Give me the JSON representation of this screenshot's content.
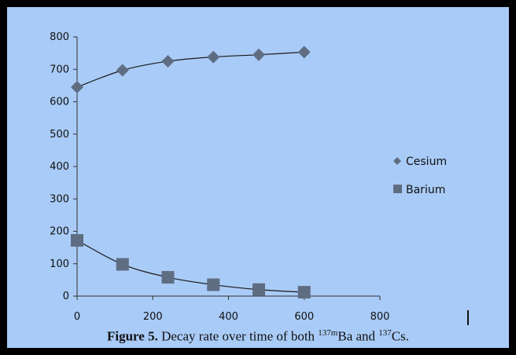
{
  "chart_data": {
    "type": "scatter",
    "title": "",
    "xlabel": "",
    "ylabel": "",
    "xlim": [
      0,
      800
    ],
    "ylim": [
      0,
      800
    ],
    "x_ticks": [
      "0",
      "200",
      "400",
      "600",
      "800"
    ],
    "y_ticks": [
      "0",
      "100",
      "200",
      "300",
      "400",
      "500",
      "600",
      "700",
      "800"
    ],
    "grid": false,
    "legend_position": "right",
    "series": [
      {
        "name": "Cesium",
        "marker": "diamond",
        "color": "#5f6d83",
        "x": [
          0,
          120,
          240,
          360,
          480,
          600
        ],
        "y": [
          645,
          697,
          725,
          738,
          745,
          753
        ],
        "trendline": "exponential rise"
      },
      {
        "name": "Barium",
        "marker": "square",
        "color": "#5f6d83",
        "x": [
          0,
          120,
          240,
          360,
          480,
          600
        ],
        "y": [
          172,
          98,
          58,
          35,
          20,
          12
        ],
        "trendline": "exponential decay"
      }
    ]
  },
  "caption": {
    "label": "Figure",
    "number": "5.",
    "text_before": " Decay rate over time of both ",
    "ba_mass": "137m",
    "ba_symbol": "Ba and ",
    "cs_mass": "137",
    "cs_symbol": "Cs."
  },
  "colors": {
    "background": "#a9cbf7",
    "frame": "#000000",
    "marker": "#5f6d83",
    "line": "#1a1a1a"
  }
}
